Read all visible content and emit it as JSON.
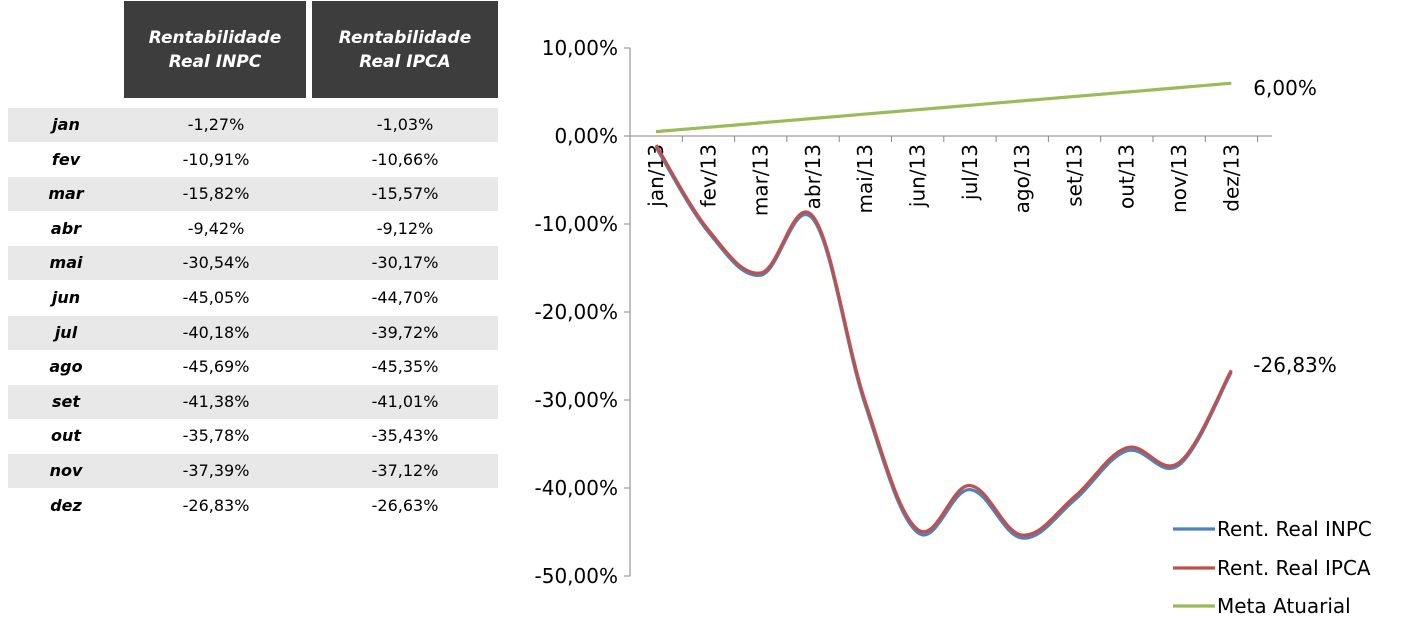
{
  "table": {
    "headers": [
      "Rentabilidade Real INPC",
      "Rentabilidade Real IPCA"
    ],
    "rows": [
      {
        "month": "jan",
        "inpc": "-1,27%",
        "ipca": "-1,03%"
      },
      {
        "month": "fev",
        "inpc": "-10,91%",
        "ipca": "-10,66%"
      },
      {
        "month": "mar",
        "inpc": "-15,82%",
        "ipca": "-15,57%"
      },
      {
        "month": "abr",
        "inpc": "-9,42%",
        "ipca": "-9,12%"
      },
      {
        "month": "mai",
        "inpc": "-30,54%",
        "ipca": "-30,17%"
      },
      {
        "month": "jun",
        "inpc": "-45,05%",
        "ipca": "-44,70%"
      },
      {
        "month": "jul",
        "inpc": "-40,18%",
        "ipca": "-39,72%"
      },
      {
        "month": "ago",
        "inpc": "-45,69%",
        "ipca": "-45,35%"
      },
      {
        "month": "set",
        "inpc": "-41,38%",
        "ipca": "-41,01%"
      },
      {
        "month": "out",
        "inpc": "-35,78%",
        "ipca": "-35,43%"
      },
      {
        "month": "nov",
        "inpc": "-37,39%",
        "ipca": "-37,12%"
      },
      {
        "month": "dez",
        "inpc": "-26,83%",
        "ipca": "-26,63%"
      }
    ]
  },
  "chart_data": {
    "type": "line",
    "categories": [
      "jan/13",
      "fev/13",
      "mar/13",
      "abr/13",
      "mai/13",
      "jun/13",
      "jul/13",
      "ago/13",
      "set/13",
      "out/13",
      "nov/13",
      "dez/13"
    ],
    "ylim": [
      -50,
      10
    ],
    "yticks": [
      10,
      0,
      -10,
      -20,
      -30,
      -40,
      -50
    ],
    "ytick_labels": [
      "10,00%",
      "0,00%",
      "-10,00%",
      "-20,00%",
      "-30,00%",
      "-40,00%",
      "-50,00%"
    ],
    "legend_position": "bottom-right",
    "series": [
      {
        "name": "Rent. Real INPC",
        "color": "#4f81bd",
        "values": [
          -1.27,
          -10.91,
          -15.82,
          -9.42,
          -30.54,
          -45.05,
          -40.18,
          -45.69,
          -41.38,
          -35.78,
          -37.39,
          -26.83
        ]
      },
      {
        "name": "Rent. Real IPCA",
        "color": "#c0504d",
        "values": [
          -1.03,
          -10.66,
          -15.57,
          -9.12,
          -30.17,
          -44.7,
          -39.72,
          -45.35,
          -41.01,
          -35.43,
          -37.12,
          -26.63
        ]
      },
      {
        "name": "Meta Atuarial",
        "color": "#9bbb59",
        "values": [
          0.5,
          0.99,
          1.49,
          1.99,
          2.49,
          2.99,
          3.49,
          3.99,
          4.49,
          4.99,
          5.5,
          6.0
        ]
      }
    ],
    "annotations": [
      {
        "text": "6,00%",
        "series": 2,
        "index": 11
      },
      {
        "text": "-26,83%",
        "series": 0,
        "index": 11
      }
    ]
  }
}
